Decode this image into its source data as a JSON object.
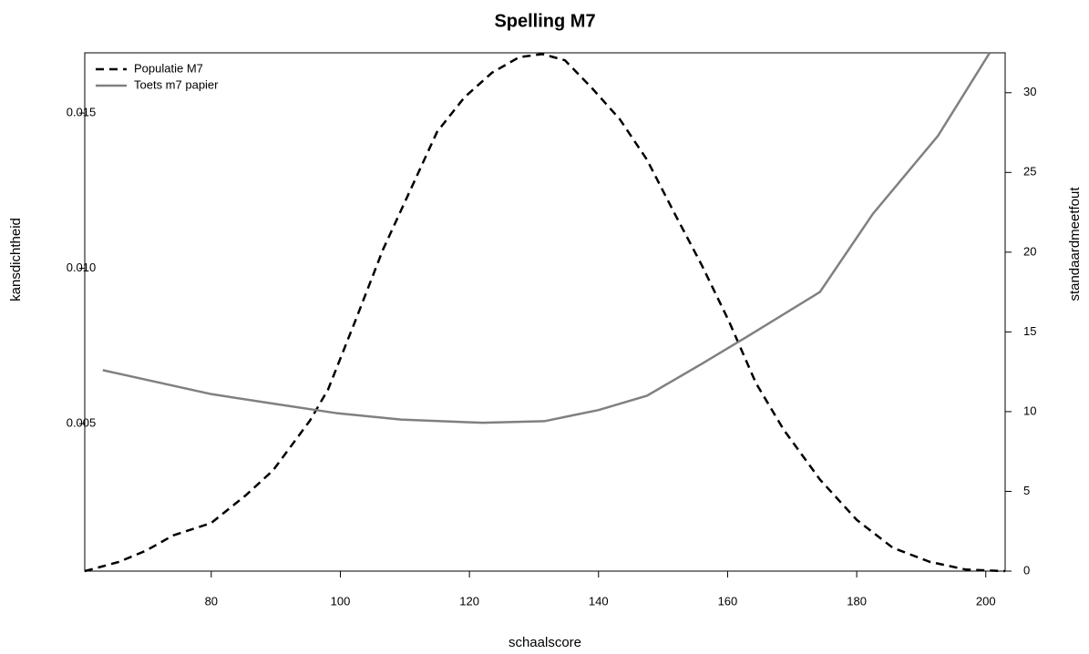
{
  "chart_data": {
    "type": "line",
    "title": "Spelling M7",
    "x_label": "schaalscore",
    "y_label": "kansdichtheid",
    "y2_label": "standaardmeetfout",
    "xlim": [
      60.4,
      203
    ],
    "xticks": [
      80,
      100,
      120,
      140,
      160,
      180,
      200
    ],
    "ylim": [
      0.00025,
      0.01694
    ],
    "yticks": [
      0.005,
      {
        "value": 0.01,
        "label": "0.010"
      },
      0.015
    ],
    "y2lim": [
      0,
      32.5
    ],
    "y2ticks": [
      0,
      5,
      10,
      15,
      20,
      25,
      30
    ],
    "legend": "top-left",
    "series": [
      {
        "name": "Populatie M7",
        "color": "#000000",
        "linestyle": "dashed",
        "axis": "y",
        "x": [
          60.4,
          65.6,
          69.9,
          74.1,
          80,
          85.4,
          89.6,
          95.3,
          98.1,
          102.3,
          106.6,
          110.8,
          115.0,
          119.2,
          123.5,
          127.7,
          131.3,
          134.8,
          139.0,
          143.3,
          147.5,
          151.7,
          156.0,
          160.2,
          164.4,
          168.7,
          174.3,
          180.0,
          185.6,
          191.3,
          196.9,
          203
        ],
        "values": [
          0.00025,
          0.00054,
          0.00091,
          0.0014,
          0.0018,
          0.0027,
          0.0035,
          0.0051,
          0.0061,
          0.0083,
          0.0106,
          0.0125,
          0.0144,
          0.0155,
          0.0163,
          0.0168,
          0.0169,
          0.0167,
          0.0158,
          0.0148,
          0.0135,
          0.0118,
          0.0101,
          0.0083,
          0.0063,
          0.0048,
          0.0032,
          0.0019,
          0.001,
          0.00055,
          0.0003,
          0.00025
        ]
      },
      {
        "name": "Toets m7 papier",
        "color": "#808080",
        "linestyle": "solid",
        "axis": "y2",
        "x": [
          63.2,
          80,
          89.6,
          99.5,
          109.4,
          122.1,
          131.6,
          140,
          147.5,
          156,
          163.0,
          174.3,
          182.5,
          192.6,
          200.6
        ],
        "values": [
          12.6,
          11.1,
          10.5,
          9.9,
          9.5,
          9.3,
          9.4,
          10.1,
          11.0,
          13.0,
          14.7,
          17.5,
          22.4,
          27.3,
          32.5
        ]
      }
    ]
  }
}
